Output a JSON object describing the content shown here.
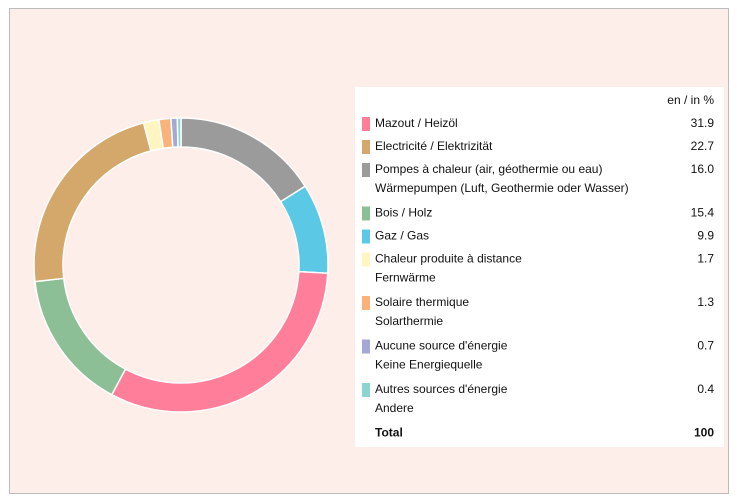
{
  "chart_data": {
    "type": "donut",
    "unit_label": "en / in %",
    "series": [
      {
        "name": [
          "Mazout / Heizöl"
        ],
        "color": "#ff7f9a",
        "value": 31.9,
        "value_label": "31.9"
      },
      {
        "name": [
          "Electricité / Elektrizität"
        ],
        "color": "#d4a76a",
        "value": 22.7,
        "value_label": "22.7"
      },
      {
        "name": [
          "Pompes à chaleur (air, géothermie ou eau)",
          "Wärmepumpen (Luft, Geothermie oder Wasser)"
        ],
        "color": "#9b9b9b",
        "value": 16.0,
        "value_label": "16.0"
      },
      {
        "name": [
          "Bois / Holz"
        ],
        "color": "#8dbf97",
        "value": 15.4,
        "value_label": "15.4"
      },
      {
        "name": [
          "Gaz / Gas"
        ],
        "color": "#5bc8e6",
        "value": 9.9,
        "value_label": "9.9"
      },
      {
        "name": [
          "Chaleur produite à distance",
          "Fernwärme"
        ],
        "color": "#fff5c0",
        "value": 1.7,
        "value_label": "1.7"
      },
      {
        "name": [
          "Solaire thermique",
          "Solarthermie"
        ],
        "color": "#f8b27a",
        "value": 1.3,
        "value_label": "1.3"
      },
      {
        "name": [
          "Aucune source d'énergie",
          "Keine Energiequelle"
        ],
        "color": "#a6a8d4",
        "value": 0.7,
        "value_label": "0.7"
      },
      {
        "name": [
          "Autres sources d'énergie",
          "Andere"
        ],
        "color": "#8dd4d0",
        "value": 0.4,
        "value_label": "0.4"
      }
    ],
    "slice_order": [
      2,
      4,
      0,
      3,
      1,
      5,
      6,
      7,
      8
    ],
    "total_label": "Total",
    "total": 100
  }
}
